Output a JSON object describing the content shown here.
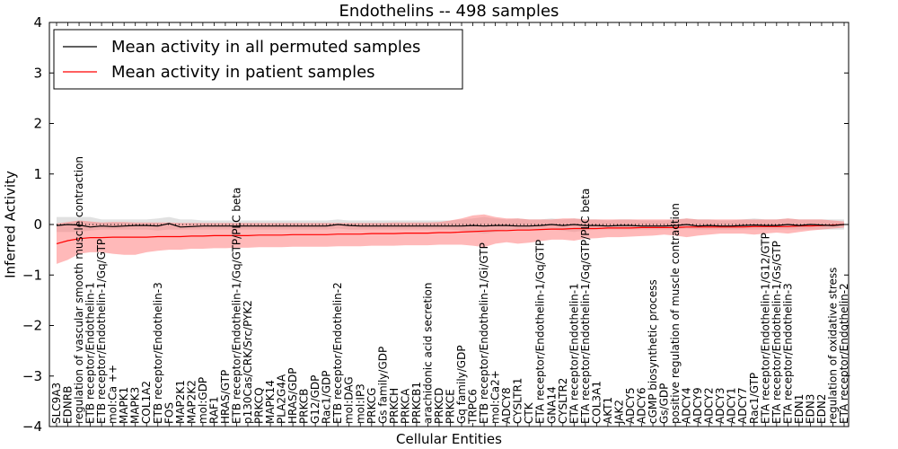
{
  "chart_data": {
    "type": "line",
    "title": "Endothelins -- 498 samples",
    "xlabel": "Cellular Entities",
    "ylabel": "Inferred Activity",
    "ylim": [
      -4,
      4
    ],
    "yticks": [
      "4",
      "3",
      "2",
      "1",
      "0",
      "−1",
      "−2",
      "−3",
      "−4"
    ],
    "legend": {
      "location": "top-left",
      "entries": [
        {
          "label": "Mean activity in all permuted samples",
          "color": "#000000"
        },
        {
          "label": "Mean activity in patient samples",
          "color": "#ff0000"
        }
      ]
    },
    "categories": [
      "SLC9A3",
      "EDNRB",
      "regulation of vascular smooth muscle contraction",
      "ETB receptor/Endothelin-1",
      "ETB receptor/Endothelin-1/Gq/GTP",
      "mol:Ca ++",
      "MAPK1",
      "MAPK3",
      "COL1A2",
      "ETB receptor/Endothelin-3",
      "FOS",
      "MAP2K1",
      "MAP2K2",
      "mol:GDP",
      "RAF1",
      "HRAS/GTP",
      "ETB receptor/Endothelin-1/Gq/GTP/PLC beta",
      "p130Cas/CRK/Src/PYK2",
      "PRKCQ",
      "MAPK14",
      "PLA2G4A",
      "HRAS/GDP",
      "PRKCB",
      "G12/GDP",
      "Rac1/GDP",
      "ETB receptor/Endothelin-2",
      "mol:DAG",
      "mol:IP3",
      "PRKCG",
      "Gs family/GDP",
      "PRKCH",
      "PRKCA",
      "PRKCB1",
      "arachidonic acid secretion",
      "PRKCD",
      "PRKCE",
      "Gq family/GDP",
      "TRPC6",
      "ETB receptor/Endothelin-1/Gi/GTP",
      "mol:Ca2+",
      "ADCY8",
      "CYSLTR1",
      "CTK",
      "ETA receptor/Endothelin-1/Gq/GTP",
      "GNA14",
      "CYSLTR2",
      "ETA receptor/Endothelin-1",
      "ETA receptor/Endothelin-1/Gq/GTP/PLC beta",
      "COL3A1",
      "AKT1",
      "JAK2",
      "ADCY5",
      "ADCY6",
      "cGMP biosynthetic process",
      "Gs/GDP",
      "positive regulation of muscle contraction",
      "ADCY4",
      "ADCY9",
      "ADCY2",
      "ADCY3",
      "ADCY1",
      "ADCY7",
      "Rac1/GTP",
      "ETA receptor/Endothelin-1/G12/GTP",
      "ETA receptor/Endothelin-1/Gs/GTP",
      "ETA receptor/Endothelin-3",
      "EDN1",
      "EDN3",
      "EDN2",
      "regulation of oxidative stress",
      "ETA receptor/Endothelin-2"
    ],
    "series": [
      {
        "name": "Mean activity in all permuted samples",
        "values": [
          -0.02,
          0.0,
          -0.01,
          -0.05,
          -0.03,
          -0.04,
          -0.03,
          -0.02,
          -0.02,
          -0.03,
          0.02,
          -0.05,
          -0.04,
          -0.03,
          -0.03,
          -0.03,
          -0.03,
          -0.03,
          -0.03,
          -0.03,
          -0.03,
          -0.03,
          -0.03,
          -0.03,
          -0.03,
          0.0,
          -0.02,
          -0.03,
          -0.03,
          -0.03,
          -0.03,
          -0.03,
          -0.03,
          -0.03,
          -0.03,
          -0.03,
          -0.03,
          -0.02,
          -0.03,
          -0.02,
          -0.02,
          -0.03,
          -0.03,
          -0.02,
          0.0,
          -0.02,
          0.0,
          -0.02,
          -0.02,
          -0.03,
          -0.02,
          -0.02,
          -0.03,
          -0.03,
          -0.03,
          -0.02,
          0.0,
          -0.03,
          -0.02,
          -0.03,
          -0.03,
          -0.02,
          -0.01,
          -0.02,
          -0.02,
          0.0,
          -0.02,
          0.0,
          -0.01,
          -0.02,
          0.0
        ],
        "band_low": [
          -0.15,
          -0.15,
          -0.15,
          -0.12,
          -0.1,
          -0.1,
          -0.1,
          -0.1,
          -0.1,
          -0.12,
          -0.1,
          -0.1,
          -0.1,
          -0.1,
          -0.1,
          -0.1,
          -0.1,
          -0.1,
          -0.1,
          -0.1,
          -0.1,
          -0.1,
          -0.1,
          -0.1,
          -0.1,
          -0.08,
          -0.1,
          -0.1,
          -0.1,
          -0.1,
          -0.1,
          -0.1,
          -0.1,
          -0.1,
          -0.1,
          -0.1,
          -0.12,
          -0.15,
          -0.18,
          -0.15,
          -0.1,
          -0.12,
          -0.12,
          -0.1,
          -0.1,
          -0.12,
          -0.15,
          -0.12,
          -0.1,
          -0.1,
          -0.1,
          -0.1,
          -0.1,
          -0.1,
          -0.1,
          -0.1,
          -0.08,
          -0.1,
          -0.1,
          -0.1,
          -0.1,
          -0.1,
          -0.1,
          -0.1,
          -0.1,
          -0.1,
          -0.1,
          -0.1,
          -0.1,
          -0.1,
          -0.1
        ],
        "band_high": [
          0.15,
          0.15,
          0.15,
          0.15,
          0.1,
          0.1,
          0.1,
          0.1,
          0.1,
          0.12,
          0.15,
          0.1,
          0.1,
          0.08,
          0.08,
          0.08,
          0.08,
          0.08,
          0.08,
          0.08,
          0.08,
          0.08,
          0.08,
          0.08,
          0.08,
          0.1,
          0.08,
          0.08,
          0.08,
          0.08,
          0.08,
          0.08,
          0.08,
          0.08,
          0.08,
          0.08,
          0.1,
          0.12,
          0.15,
          0.12,
          0.1,
          0.12,
          0.1,
          0.1,
          0.12,
          0.1,
          0.12,
          0.1,
          0.1,
          0.08,
          0.1,
          0.1,
          0.08,
          0.08,
          0.08,
          0.1,
          0.12,
          0.1,
          0.1,
          0.08,
          0.08,
          0.1,
          0.12,
          0.1,
          0.1,
          0.12,
          0.1,
          0.1,
          0.1,
          0.1,
          0.1
        ]
      },
      {
        "name": "Mean activity in patient samples",
        "values": [
          -0.38,
          -0.32,
          -0.28,
          -0.26,
          -0.26,
          -0.25,
          -0.25,
          -0.25,
          -0.25,
          -0.24,
          -0.24,
          -0.24,
          -0.23,
          -0.23,
          -0.22,
          -0.22,
          -0.22,
          -0.22,
          -0.21,
          -0.21,
          -0.21,
          -0.2,
          -0.2,
          -0.2,
          -0.2,
          -0.19,
          -0.19,
          -0.19,
          -0.18,
          -0.18,
          -0.18,
          -0.17,
          -0.17,
          -0.17,
          -0.16,
          -0.16,
          -0.15,
          -0.14,
          -0.13,
          -0.12,
          -0.12,
          -0.11,
          -0.11,
          -0.1,
          -0.09,
          -0.09,
          -0.08,
          -0.08,
          -0.08,
          -0.07,
          -0.07,
          -0.07,
          -0.06,
          -0.06,
          -0.06,
          -0.06,
          -0.05,
          -0.05,
          -0.05,
          -0.05,
          -0.05,
          -0.05,
          -0.04,
          -0.04,
          -0.04,
          -0.04,
          -0.03,
          -0.03,
          -0.02,
          -0.01,
          0.0
        ],
        "band_low": [
          -0.78,
          -0.7,
          -0.58,
          -0.55,
          -0.55,
          -0.58,
          -0.6,
          -0.6,
          -0.55,
          -0.52,
          -0.5,
          -0.5,
          -0.48,
          -0.48,
          -0.47,
          -0.47,
          -0.46,
          -0.46,
          -0.45,
          -0.45,
          -0.45,
          -0.44,
          -0.44,
          -0.44,
          -0.44,
          -0.43,
          -0.43,
          -0.43,
          -0.42,
          -0.42,
          -0.42,
          -0.41,
          -0.41,
          -0.41,
          -0.4,
          -0.4,
          -0.4,
          -0.42,
          -0.45,
          -0.38,
          -0.35,
          -0.38,
          -0.36,
          -0.33,
          -0.3,
          -0.3,
          -0.32,
          -0.28,
          -0.27,
          -0.25,
          -0.25,
          -0.24,
          -0.23,
          -0.22,
          -0.2,
          -0.22,
          -0.25,
          -0.22,
          -0.2,
          -0.18,
          -0.18,
          -0.18,
          -0.2,
          -0.18,
          -0.16,
          -0.18,
          -0.15,
          -0.12,
          -0.1,
          -0.08,
          -0.06
        ],
        "band_high": [
          0.02,
          0.05,
          0.08,
          0.06,
          0.04,
          0.05,
          0.05,
          0.04,
          0.04,
          0.04,
          0.04,
          0.03,
          0.03,
          0.03,
          0.03,
          0.03,
          0.03,
          0.03,
          0.03,
          0.03,
          0.03,
          0.03,
          0.03,
          0.03,
          0.03,
          0.03,
          0.03,
          0.03,
          0.03,
          0.03,
          0.04,
          0.04,
          0.04,
          0.04,
          0.05,
          0.08,
          0.12,
          0.18,
          0.2,
          0.15,
          0.12,
          0.12,
          0.1,
          0.1,
          0.1,
          0.12,
          0.12,
          0.1,
          0.1,
          0.1,
          0.1,
          0.1,
          0.1,
          0.1,
          0.1,
          0.1,
          0.12,
          0.1,
          0.1,
          0.1,
          0.1,
          0.1,
          0.1,
          0.1,
          0.1,
          0.12,
          0.1,
          0.1,
          0.1,
          0.08,
          0.06
        ]
      }
    ]
  }
}
